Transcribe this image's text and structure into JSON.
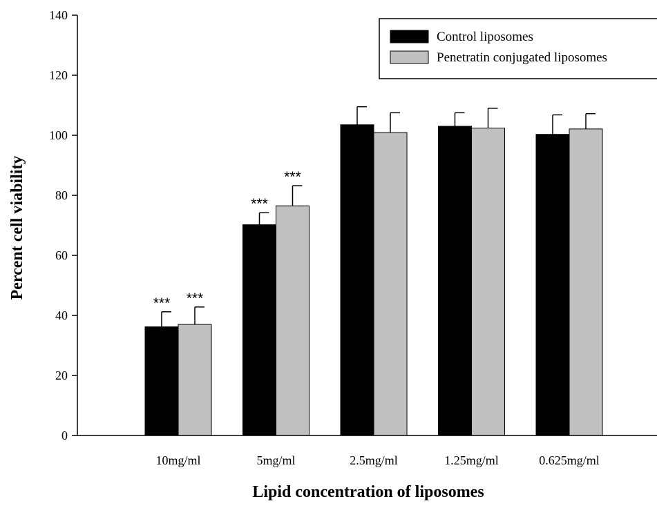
{
  "chart_data": {
    "type": "bar",
    "title": "",
    "xlabel": "Lipid concentration of liposomes",
    "ylabel": "Percent cell viability",
    "ylim": [
      0,
      140
    ],
    "yticks": [
      0,
      20,
      40,
      60,
      80,
      100,
      120,
      140
    ],
    "categories": [
      "10mg/ml",
      "5mg/ml",
      "2.5mg/ml",
      "1.25mg/ml",
      "0.625mg/ml"
    ],
    "series": [
      {
        "name": "Control liposomes",
        "color": "#000000",
        "values": [
          36.2,
          70.2,
          103.5,
          103.0,
          100.3
        ],
        "errors": [
          5.0,
          4.0,
          6.0,
          4.5,
          6.5
        ],
        "significance": [
          "***",
          "***",
          "",
          "",
          ""
        ]
      },
      {
        "name": "Penetratin conjugated liposomes",
        "color": "#c0c0c0",
        "values": [
          37.0,
          76.5,
          100.9,
          102.4,
          102.1
        ],
        "errors": [
          5.8,
          6.7,
          6.6,
          6.6,
          5.1
        ],
        "significance": [
          "***",
          "***",
          "",
          "",
          ""
        ]
      }
    ],
    "legend_position": "top-right",
    "grid": false
  }
}
